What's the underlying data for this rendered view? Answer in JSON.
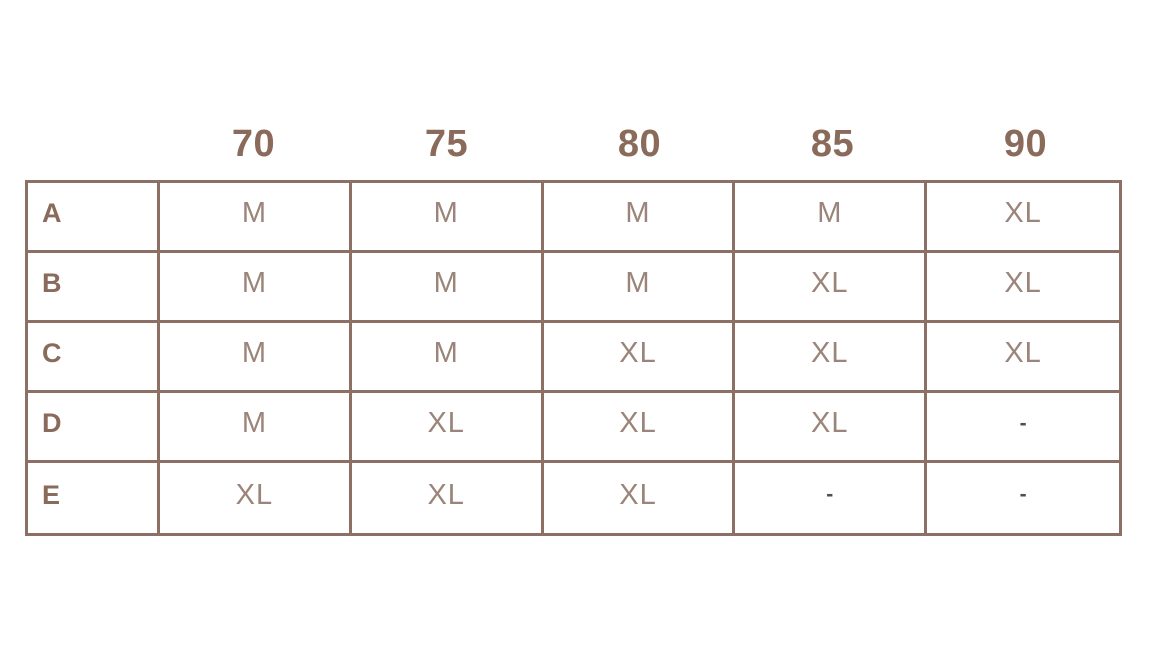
{
  "colors": {
    "border": "#8d7065",
    "header_text": "#8a6a5a",
    "value_text": "#9b8479",
    "dash_text": "#4f4f4f",
    "background": "#ffffff"
  },
  "chart_data": {
    "type": "table",
    "title": "",
    "columns": [
      "70",
      "75",
      "80",
      "85",
      "90"
    ],
    "rows": [
      {
        "label": "A",
        "values": [
          "M",
          "M",
          "M",
          "M",
          "XL"
        ]
      },
      {
        "label": "B",
        "values": [
          "M",
          "M",
          "M",
          "XL",
          "XL"
        ]
      },
      {
        "label": "C",
        "values": [
          "M",
          "M",
          "XL",
          "XL",
          "XL"
        ]
      },
      {
        "label": "D",
        "values": [
          "M",
          "XL",
          "XL",
          "XL",
          "-"
        ]
      },
      {
        "label": "E",
        "values": [
          "XL",
          "XL",
          "XL",
          "-",
          "-"
        ]
      }
    ]
  }
}
